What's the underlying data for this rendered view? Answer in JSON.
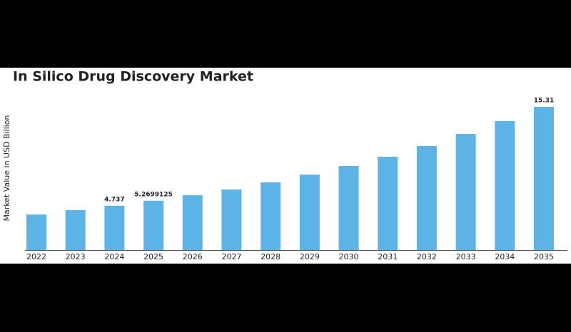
{
  "chart_data": {
    "type": "bar",
    "title": "In Silico Drug Discovery Market",
    "y_label": "Market Value in USD Billion",
    "categories": [
      "2022",
      "2023",
      "2024",
      "2025",
      "2026",
      "2027",
      "2028",
      "2029",
      "2030",
      "2031",
      "2032",
      "2033",
      "2034",
      "2035"
    ],
    "values": [
      3.8,
      4.27,
      4.737,
      5.2699125,
      5.86,
      6.47,
      7.24,
      8.07,
      8.99,
      9.98,
      11.12,
      12.41,
      13.79,
      15.31
    ],
    "value_labels": [
      null,
      null,
      "4.737",
      "5.2699125",
      null,
      null,
      null,
      null,
      null,
      null,
      null,
      null,
      null,
      "15.31"
    ],
    "color": "#5bb3e6"
  }
}
